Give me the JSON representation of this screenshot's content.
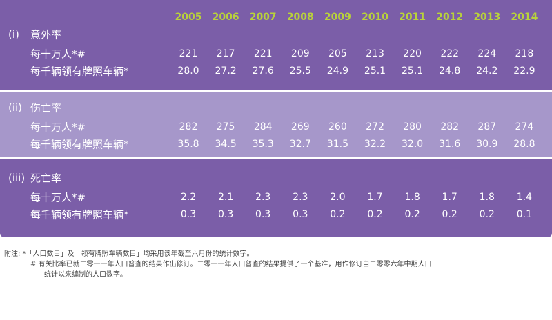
{
  "header": {
    "years": [
      "2005",
      "2006",
      "2007",
      "2008",
      "2009",
      "2010",
      "2011",
      "2012",
      "2013",
      "2014"
    ]
  },
  "sections": [
    {
      "number": "(i)",
      "title": "意外率",
      "rows": [
        {
          "label": "每十万人*#",
          "values": [
            "221",
            "217",
            "221",
            "209",
            "205",
            "213",
            "220",
            "222",
            "224",
            "218"
          ]
        },
        {
          "label": "每千辆领有牌照车辆*",
          "values": [
            "28.0",
            "27.2",
            "27.6",
            "25.5",
            "24.9",
            "25.1",
            "25.1",
            "24.8",
            "24.2",
            "22.9"
          ]
        }
      ]
    },
    {
      "number": "(ii)",
      "title": "伤亡率",
      "rows": [
        {
          "label": "每十万人*#",
          "values": [
            "282",
            "275",
            "284",
            "269",
            "260",
            "272",
            "280",
            "282",
            "287",
            "274"
          ]
        },
        {
          "label": "每千辆领有牌照车辆*",
          "values": [
            "35.8",
            "34.5",
            "35.3",
            "32.7",
            "31.5",
            "32.2",
            "32.0",
            "31.6",
            "30.9",
            "28.8"
          ]
        }
      ]
    },
    {
      "number": "(iii)",
      "title": "死亡率",
      "rows": [
        {
          "label": "每十万人*#",
          "values": [
            "2.2",
            "2.1",
            "2.3",
            "2.3",
            "2.0",
            "1.7",
            "1.8",
            "1.7",
            "1.8",
            "1.4"
          ]
        },
        {
          "label": "每千辆领有牌照车辆*",
          "values": [
            "0.3",
            "0.3",
            "0.3",
            "0.3",
            "0.2",
            "0.2",
            "0.2",
            "0.2",
            "0.2",
            "0.1"
          ]
        }
      ]
    }
  ],
  "notes": [
    "附注: *「人口数目」及「领有牌照车辆数目」均采用该年截至六月份的统计数字。",
    "# 有关比率已就二零一一年人口普查的结果作出修订。二零一一年人口普查的结果提供了一个基准，用作修订自二零零六年中期人口",
    "统计以来编制的人口数字。"
  ]
}
